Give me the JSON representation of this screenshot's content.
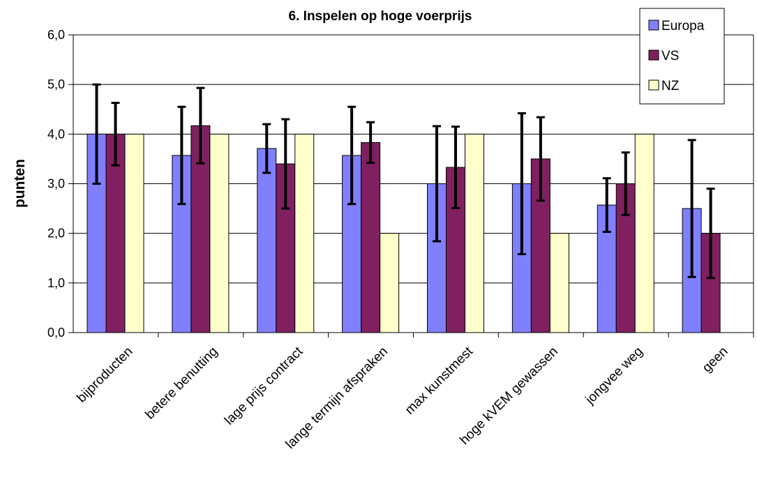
{
  "chart_data": {
    "type": "bar",
    "title": "6. Inspelen op hoge voerprijs",
    "xlabel": "",
    "ylabel": "punten",
    "ylim": [
      0,
      6
    ],
    "yticks": [
      "0,0",
      "1,0",
      "2,0",
      "3,0",
      "4,0",
      "5,0",
      "6,0"
    ],
    "grid": true,
    "legend_position": "top-right",
    "categories": [
      "bijproducten",
      "betere benutting",
      "lage prijs contract",
      "lange termijn afspraken",
      "max kunstmest",
      "hoge kVEM gewassen",
      "jongvee weg",
      "geen"
    ],
    "series": [
      {
        "name": "Europa",
        "color": "#8080ff",
        "values": [
          4.0,
          3.57,
          3.71,
          3.57,
          3.0,
          3.0,
          2.57,
          2.5
        ],
        "error_low": [
          3.0,
          2.59,
          3.22,
          2.59,
          1.84,
          1.58,
          2.03,
          1.12
        ],
        "error_high": [
          5.0,
          4.55,
          4.2,
          4.55,
          4.16,
          4.42,
          3.11,
          3.88
        ]
      },
      {
        "name": "VS",
        "color": "#802060",
        "values": [
          4.0,
          4.17,
          3.4,
          3.83,
          3.33,
          3.5,
          3.0,
          2.0
        ],
        "error_low": [
          3.37,
          3.41,
          2.5,
          3.42,
          2.51,
          2.66,
          2.37,
          1.1
        ],
        "error_high": [
          4.63,
          4.93,
          4.3,
          4.24,
          4.15,
          4.34,
          3.63,
          2.9
        ]
      },
      {
        "name": "NZ",
        "color": "#ffffcc",
        "values": [
          4.0,
          4.0,
          4.0,
          2.0,
          4.0,
          2.0,
          4.0,
          null
        ]
      }
    ]
  }
}
